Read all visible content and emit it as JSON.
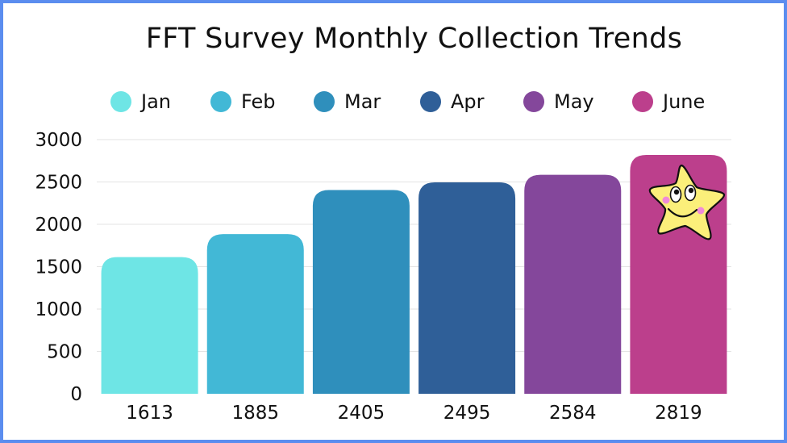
{
  "chart_data": {
    "type": "bar",
    "title": "FFT Survey Monthly Collection Trends",
    "categories": [
      "Jan",
      "Feb",
      "Mar",
      "Apr",
      "May",
      "June"
    ],
    "values": [
      1613,
      1885,
      2405,
      2495,
      2584,
      2819
    ],
    "bar_labels": [
      "1613",
      "1885",
      "2405",
      "2495",
      "2584",
      "2819"
    ],
    "colors": [
      "#6ee5e5",
      "#42b8d6",
      "#2f8fbc",
      "#2f5f98",
      "#84479b",
      "#bc3f8c"
    ],
    "y_ticks": [
      0,
      500,
      1000,
      1500,
      2000,
      2500,
      3000
    ],
    "ylim": [
      0,
      3000
    ],
    "grid": true,
    "legend_position": "top",
    "decoration": "star-sticker-icon"
  }
}
